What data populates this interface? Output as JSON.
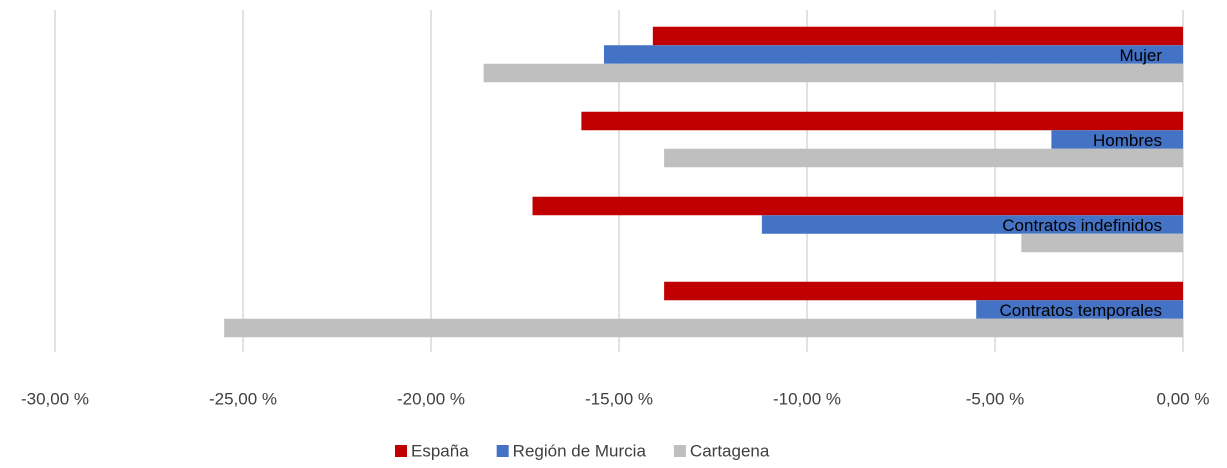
{
  "chart_data": {
    "type": "hbar",
    "categories": [
      "Mujer",
      "Hombres",
      "Contratos indefinidos",
      "Contratos temporales"
    ],
    "series": [
      {
        "name": "España",
        "color": "#C00000",
        "values": [
          -14.1,
          -16.0,
          -17.3,
          -13.8
        ]
      },
      {
        "name": "Región de Murcia",
        "color": "#4472C4",
        "values": [
          -15.4,
          -3.5,
          -11.2,
          -5.5
        ]
      },
      {
        "name": "Cartagena",
        "color": "#BFBFBF",
        "values": [
          -18.6,
          -13.8,
          -4.3,
          -25.5
        ]
      }
    ],
    "xlim": [
      -30,
      0
    ],
    "xticks": [
      {
        "value": -30,
        "label": "-30,00 %"
      },
      {
        "value": -25,
        "label": "-25,00 %"
      },
      {
        "value": -20,
        "label": "-20,00 %"
      },
      {
        "value": -15,
        "label": "-15,00 %"
      },
      {
        "value": -10,
        "label": "-10,00 %"
      },
      {
        "value": -5,
        "label": "-5,00 %"
      },
      {
        "value": 0,
        "label": "0,00 %"
      }
    ],
    "grid": true,
    "legend": "bottom"
  }
}
